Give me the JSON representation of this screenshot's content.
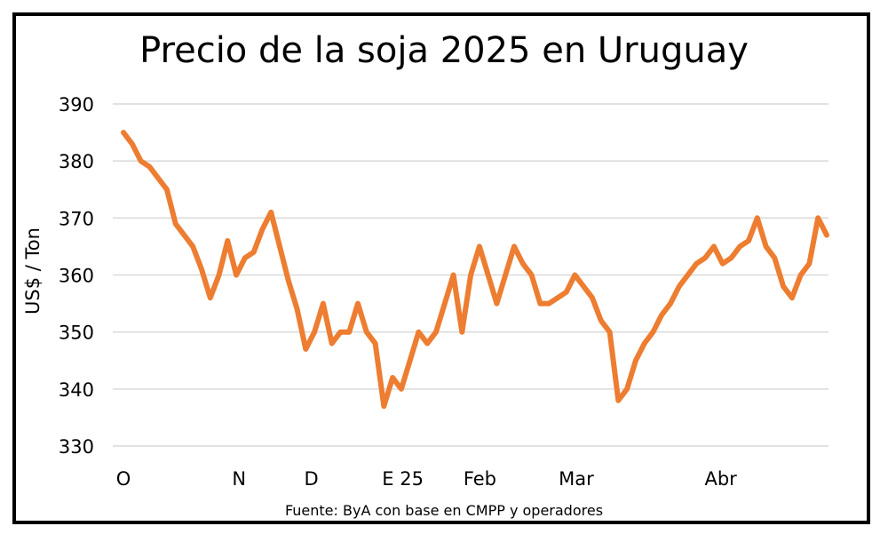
{
  "chart_data": {
    "type": "line",
    "title": "Precio de la soja 2025 en Uruguay",
    "xlabel": "",
    "ylabel": "US$ / Ton",
    "source": "Fuente: ByA con base en CMPP y operadores",
    "ylim": [
      330,
      390
    ],
    "yticks": [
      330,
      340,
      350,
      360,
      370,
      380,
      390
    ],
    "xlim": [
      0,
      73
    ],
    "grid": "horizontal",
    "legend": "none",
    "line_color": "#ED7D31",
    "x_labels": [
      {
        "label": "O",
        "x": 0
      },
      {
        "label": "N",
        "x": 12
      },
      {
        "label": "D",
        "x": 19.5
      },
      {
        "label": "E 25",
        "x": 29
      },
      {
        "label": "Feb",
        "x": 37
      },
      {
        "label": "Mar",
        "x": 47
      },
      {
        "label": "Abr",
        "x": 62
      }
    ],
    "series": [
      {
        "values": [
          385,
          383,
          380,
          379,
          377,
          375,
          369,
          367,
          365,
          361,
          356,
          360,
          366,
          360,
          363,
          364,
          368,
          371,
          365,
          359,
          354,
          347,
          350,
          355,
          348,
          350,
          350,
          355,
          350,
          348,
          337,
          342,
          340,
          345,
          350,
          348,
          350,
          355,
          360,
          350,
          360,
          365,
          360,
          355,
          360,
          365,
          362,
          360,
          355,
          355,
          356,
          357,
          360,
          358,
          356,
          352,
          350,
          338,
          340,
          345,
          348,
          350,
          353,
          355,
          358,
          360,
          362,
          363,
          365,
          362,
          363,
          365,
          366,
          370,
          365,
          363,
          358,
          356,
          360,
          362,
          370,
          367
        ]
      }
    ]
  }
}
